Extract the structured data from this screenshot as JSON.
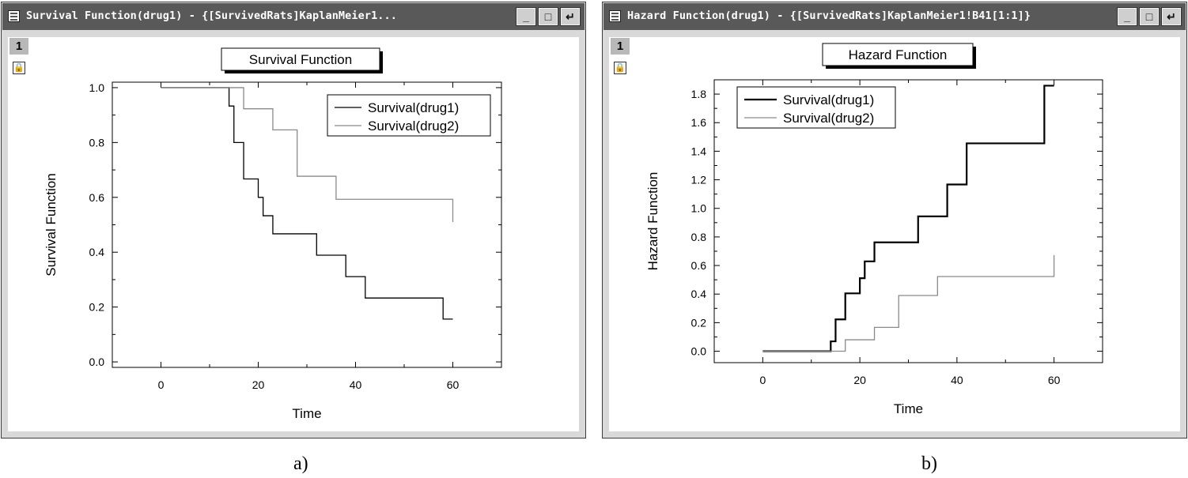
{
  "windows": [
    {
      "title": "Survival Function(drug1) - {[SurvivedRats]KaplanMeier1...",
      "layer_label": "1",
      "caption": "a)"
    },
    {
      "title": "Hazard Function(drug1) - {[SurvivedRats]KaplanMeier1!B41[1:1]}",
      "layer_label": "1",
      "caption": "b)"
    }
  ],
  "icons": {
    "minimize": "minimize-icon",
    "maximize": "maximize-icon",
    "restore": "restore-icon",
    "lock": "lock-icon"
  },
  "chart_data": [
    {
      "type": "line",
      "title": "Survival Function",
      "xlabel": "Time",
      "ylabel": "Survival Function",
      "xlim": [
        -10,
        70
      ],
      "ylim": [
        -0.02,
        1.02
      ],
      "xticks": [
        0,
        20,
        40,
        60
      ],
      "xtick_labels": [
        "0",
        "20",
        "40",
        "60"
      ],
      "yticks": [
        0.0,
        0.2,
        0.4,
        0.6,
        0.8,
        1.0
      ],
      "ytick_labels": [
        "0.0",
        "0.2",
        "0.4",
        "0.6",
        "0.8",
        "1.0"
      ],
      "step": true,
      "legend_placement": "top-right",
      "series": [
        {
          "name": "Survival(drug1)",
          "color": "#000000",
          "x": [
            0,
            14,
            15,
            17,
            20,
            21,
            23,
            32,
            38,
            42,
            58,
            60
          ],
          "y": [
            1.0,
            0.933,
            0.8,
            0.667,
            0.6,
            0.533,
            0.467,
            0.389,
            0.311,
            0.233,
            0.156,
            0.156
          ]
        },
        {
          "name": "Survival(drug2)",
          "color": "#8a8a8a",
          "x": [
            0,
            17,
            23,
            28,
            36,
            60,
            60
          ],
          "y": [
            1.0,
            0.923,
            0.846,
            0.677,
            0.593,
            0.593,
            0.51
          ]
        }
      ]
    },
    {
      "type": "line",
      "title": "Hazard Function",
      "xlabel": "Time",
      "ylabel": "Hazard Function",
      "xlim": [
        -10,
        70
      ],
      "ylim": [
        -0.08,
        1.9
      ],
      "xticks": [
        0,
        20,
        40,
        60
      ],
      "xtick_labels": [
        "0",
        "20",
        "40",
        "60"
      ],
      "yticks": [
        0.0,
        0.2,
        0.4,
        0.6,
        0.8,
        1.0,
        1.2,
        1.4,
        1.6,
        1.8
      ],
      "ytick_labels": [
        "0.0",
        "0.2",
        "0.4",
        "0.6",
        "0.8",
        "1.0",
        "1.2",
        "1.4",
        "1.6",
        "1.8"
      ],
      "step": true,
      "legend_placement": "top-left",
      "series": [
        {
          "name": "Survival(drug1)",
          "color": "#000000",
          "x": [
            0,
            14,
            15,
            17,
            20,
            21,
            23,
            32,
            38,
            42,
            58,
            60
          ],
          "y": [
            0.0,
            0.069,
            0.223,
            0.405,
            0.511,
            0.629,
            0.762,
            0.944,
            1.167,
            1.455,
            1.859,
            1.859
          ]
        },
        {
          "name": "Survival(drug2)",
          "color": "#8a8a8a",
          "x": [
            0,
            17,
            23,
            28,
            36,
            60,
            60
          ],
          "y": [
            0.0,
            0.08,
            0.167,
            0.39,
            0.523,
            0.523,
            0.673
          ]
        }
      ]
    }
  ]
}
